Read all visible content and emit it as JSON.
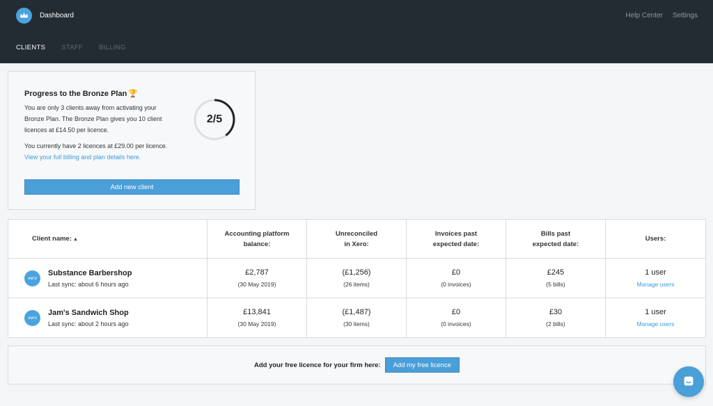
{
  "header": {
    "app_title": "Dashboard",
    "logo_icon": "crown-icon",
    "links": [
      "Help Center",
      "Settings"
    ]
  },
  "tabs": [
    {
      "label": "CLIENTS",
      "active": true
    },
    {
      "label": "STAFF",
      "active": false
    },
    {
      "label": "BILLING",
      "active": false
    }
  ],
  "plan": {
    "title": "Progress to the Bronze Plan",
    "trophy_icon": "trophy-icon",
    "description": "You are only 3 clients away from activating your Bronze Plan. The Bronze Plan gives you 10 client licences at £14.50 per licence.",
    "current": "You currently have 2 licences at £29.00 per licence.",
    "link": "View your full billing and plan details here.",
    "progress_label": "2/5",
    "progress_value": 2,
    "progress_max": 5,
    "add_button": "Add new client"
  },
  "table": {
    "headers": {
      "name": "Client name:",
      "balance": "Accounting platform balance:",
      "unreconciled": "Unreconciled in Xero:",
      "invoices": "Invoices past expected date:",
      "bills": "Bills past expected date:",
      "users": "Users:"
    },
    "rows": [
      {
        "badge": "xero",
        "name": "Substance Barbershop",
        "sync": "Last sync: about 6 hours ago",
        "balance": "£2,787",
        "balance_date": "(30 May 2019)",
        "unreconciled": "(£1,256)",
        "unreconciled_sub": "(26 items)",
        "invoices": "£0",
        "invoices_sub": "(0 invoices)",
        "bills": "£245",
        "bills_sub": "(5 bills)",
        "users": "1 user",
        "manage": "Manage users"
      },
      {
        "badge": "xero",
        "name": "Jam's Sandwich Shop",
        "sync": "Last sync: about 2 hours ago",
        "balance": "£13,841",
        "balance_date": "(30 May 2019)",
        "unreconciled": "(£1,487)",
        "unreconciled_sub": "(30 items)",
        "invoices": "£0",
        "invoices_sub": "(0 invoices)",
        "bills": "£30",
        "bills_sub": "(2 bills)",
        "users": "1 user",
        "manage": "Manage users"
      }
    ]
  },
  "free_licence": {
    "label": "Add your free licence for your firm here:",
    "button": "Add my free licence"
  },
  "chat_icon": "chat-icon",
  "colors": {
    "topbar": "#232c33",
    "accent": "#4a9fd8",
    "link": "#3b9ad9"
  }
}
